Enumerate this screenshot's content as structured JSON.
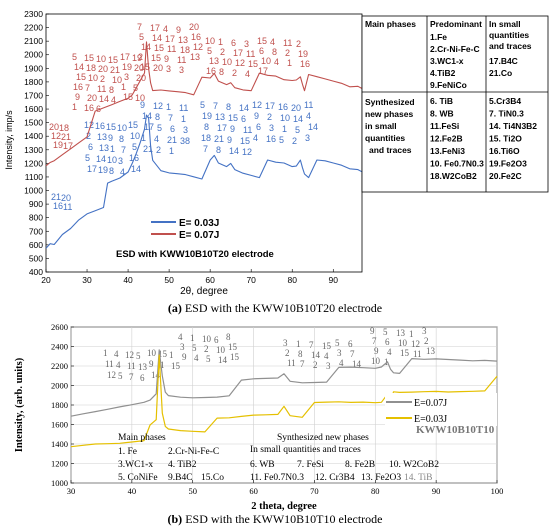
{
  "captions": {
    "a_letter": "(a)",
    "a_text": "ESD with the KWW10B10T20 electrode",
    "b_letter": "(b)",
    "b_text": "ESD with the KWW10B10T10 electrode"
  },
  "chart_data": [
    {
      "type": "line",
      "title": "",
      "xlabel": "2θ, degree",
      "ylabel": "Intensity, imp/s",
      "xlim": [
        20,
        97
      ],
      "ylim": [
        400,
        2300
      ],
      "xticks": [
        20,
        30,
        40,
        50,
        60,
        70,
        80,
        90
      ],
      "yticks": [
        400,
        500,
        600,
        700,
        800,
        900,
        1000,
        1100,
        1200,
        1300,
        1400,
        1500,
        1600,
        1700,
        1800,
        1900,
        2000,
        2100,
        2200,
        2300
      ],
      "grid": false,
      "legend_position": "bottom-center",
      "inset_label": "ESD with KWW10B10T20 electrode",
      "series": [
        {
          "name": "E= 0.03J",
          "color": "#4472c4",
          "x": [
            20,
            21,
            22,
            24,
            26,
            28,
            30,
            32,
            34,
            35,
            36,
            38,
            40,
            41,
            42,
            43,
            44,
            44.5,
            45,
            45.5,
            46,
            48,
            50,
            52,
            54,
            56,
            58,
            60,
            61,
            62,
            64,
            65,
            66,
            68,
            70,
            72,
            74,
            76,
            78,
            80,
            81,
            82,
            82.5,
            83,
            84,
            86,
            88,
            90,
            92,
            94,
            96,
            97
          ],
          "y": [
            510,
            560,
            570,
            660,
            720,
            800,
            860,
            900,
            940,
            990,
            1020,
            1060,
            1120,
            1200,
            1290,
            1390,
            1500,
            1620,
            1470,
            1280,
            1190,
            1130,
            1130,
            1140,
            1150,
            1150,
            1150,
            1160,
            1210,
            1170,
            1160,
            1200,
            1170,
            1160,
            1160,
            1160,
            1160,
            1160,
            1170,
            1160,
            1180,
            1240,
            1200,
            1170,
            1160,
            1160,
            1170,
            1170,
            1170,
            1160,
            1170,
            1170
          ]
        },
        {
          "name": "E= 0.07J",
          "color": "#c0504d",
          "x": [
            20,
            21,
            22,
            24,
            26,
            28,
            30,
            32,
            34,
            36,
            38,
            40,
            41,
            42,
            43,
            44,
            44.5,
            45,
            45.5,
            46,
            48,
            50,
            52,
            54,
            56,
            58,
            60,
            61,
            62,
            64,
            65,
            66,
            68,
            70,
            72,
            74,
            76,
            78,
            80,
            81,
            82,
            82.5,
            83,
            84,
            86,
            88,
            90,
            92,
            94,
            96,
            97
          ],
          "y": [
            1150,
            1190,
            1220,
            1280,
            1340,
            1400,
            1460,
            1520,
            1560,
            1600,
            1640,
            1680,
            1720,
            1790,
            1860,
            1930,
            2030,
            1850,
            1760,
            1720,
            1740,
            1750,
            1760,
            1770,
            1770,
            1770,
            1780,
            1830,
            1790,
            1780,
            1810,
            1790,
            1790,
            1800,
            1800,
            1800,
            1810,
            1800,
            1810,
            1830,
            1870,
            1830,
            1800,
            1790,
            1790,
            1790,
            1790,
            1790,
            1780,
            1800,
            1800
          ]
        }
      ],
      "annotations": {
        "red": [
          "20",
          "18",
          "12",
          "21",
          "19",
          "17",
          "5",
          "15",
          "10",
          "15",
          "17",
          "19",
          "14",
          "18",
          "20",
          "21",
          "19",
          "20",
          "15",
          "10",
          "2",
          "10",
          "3",
          "20",
          "16",
          "7",
          "11",
          "8",
          "1",
          "5",
          "9",
          "20",
          "14",
          "4",
          "15",
          "10",
          "1",
          "16",
          "6",
          "7",
          "17",
          "4",
          "9",
          "20",
          "5",
          "14",
          "17",
          "13",
          "16",
          "14",
          "15",
          "11",
          "18",
          "12",
          "2",
          "15",
          "9",
          "11",
          "13",
          "15",
          "20",
          "3",
          "3",
          "10",
          "1",
          "6",
          "3",
          "15",
          "4",
          "11",
          "2",
          "5",
          "2",
          "17",
          "11",
          "6",
          "8",
          "2",
          "19",
          "13",
          "10",
          "12",
          "15",
          "10",
          "4",
          "1",
          "16",
          "16",
          "8",
          "2",
          "4",
          "17"
        ],
        "blue": [
          "21",
          "20",
          "16",
          "11",
          "12",
          "16",
          "15",
          "10",
          "15",
          "2",
          "13",
          "9",
          "8",
          "10",
          "6",
          "13",
          "1",
          "7",
          "5",
          "5",
          "14",
          "10",
          "3",
          "16",
          "17",
          "19",
          "8",
          "4",
          "14",
          "9",
          "12",
          "1",
          "11",
          "14",
          "8",
          "7",
          "1",
          "17",
          "5",
          "6",
          "3",
          "1",
          "4",
          "21",
          "38",
          "21",
          "2",
          "1",
          "5",
          "7",
          "8",
          "14",
          "12",
          "17",
          "16",
          "20",
          "11",
          "19",
          "13",
          "15",
          "6",
          "9",
          "2",
          "10",
          "14",
          "4",
          "8",
          "17",
          "9",
          "11",
          "6",
          "3",
          "1",
          "5",
          "14",
          "18",
          "21",
          "9",
          "15",
          "4",
          "16",
          "5",
          "2",
          "3",
          "7",
          "8",
          "14",
          "12"
        ]
      },
      "phase_table": {
        "headers": [
          "Main phases",
          "Predominant",
          "In small quantities and traces"
        ],
        "main_predominant": [
          "1.Fe",
          "2.Cr-Ni-Fe-C",
          "3.WC1-x",
          "4.TiB2",
          "9.FeNiCo"
        ],
        "main_small": [
          "17.B4C",
          "21.Co"
        ],
        "synth_label": "Synthesized new phases in small quantities and traces",
        "synth_col1": [
          "6. TiB",
          "8. WB",
          "11.FeSi",
          "12.Fe2B",
          "13.FeNi3",
          "10. Fe0.7N0.3",
          "18.W2CoB2"
        ],
        "synth_col2": [
          "5.Cr3B4",
          "7. TiN0.3",
          "14. Ti4N3B2",
          "15. Ti2O",
          "16.Ti6O",
          "19.Fe2O3",
          "20.Fe2C"
        ]
      }
    },
    {
      "type": "line",
      "title": "",
      "xlabel": "2 theta, degree",
      "ylabel": "Intensity, (arb. units)",
      "xlim": [
        30,
        100
      ],
      "ylim": [
        1000,
        2600
      ],
      "xticks": [
        30,
        40,
        50,
        60,
        70,
        80,
        90,
        100
      ],
      "yticks": [
        1000,
        1200,
        1400,
        1600,
        1800,
        2000,
        2200,
        2400,
        2600
      ],
      "grid": true,
      "legend_position": "right",
      "inset_label": "KWW10B10T10",
      "series": [
        {
          "name": "E=0.07J",
          "color": "#909090",
          "x": [
            30,
            32,
            34,
            36,
            38,
            40,
            42,
            43,
            44,
            44.5,
            45,
            45.5,
            46,
            48,
            50,
            52,
            54,
            56,
            58,
            60,
            62,
            64,
            65,
            66,
            68,
            70,
            72,
            74,
            76,
            78,
            80,
            81,
            82,
            82.5,
            83,
            84,
            86,
            88,
            90,
            92,
            94,
            96,
            98,
            100
          ],
          "y": [
            1620,
            1660,
            1700,
            1740,
            1780,
            1820,
            1860,
            1900,
            1980,
            2300,
            2050,
            1900,
            1880,
            1880,
            1890,
            1910,
            1930,
            1960,
            1990,
            2020,
            2040,
            2060,
            2120,
            2060,
            2060,
            2080,
            2100,
            2120,
            2140,
            2150,
            2160,
            2190,
            2260,
            2200,
            2180,
            2190,
            2210,
            2220,
            2240,
            2250,
            2260,
            2270,
            2290,
            2300
          ]
        },
        {
          "name": "E=0.03J",
          "color": "#e5c000",
          "x": [
            30,
            32,
            34,
            36,
            38,
            40,
            42,
            43,
            44,
            44.5,
            45,
            45.5,
            46,
            48,
            50,
            52,
            54,
            56,
            58,
            60,
            62,
            64,
            65,
            66,
            68,
            70,
            72,
            74,
            76,
            78,
            80,
            81,
            82,
            82.5,
            83,
            84,
            86,
            88,
            90,
            92,
            94,
            96,
            98,
            100
          ],
          "y": [
            1340,
            1370,
            1400,
            1420,
            1440,
            1470,
            1500,
            1530,
            1600,
            2280,
            1700,
            1580,
            1570,
            1570,
            1580,
            1590,
            1600,
            1620,
            1650,
            1680,
            1700,
            1720,
            1820,
            1740,
            1740,
            1760,
            1780,
            1800,
            1810,
            1830,
            1840,
            1860,
            1960,
            1890,
            1870,
            1880,
            1900,
            1920,
            1940,
            1950,
            1970,
            1990,
            2010,
            2030
          ]
        }
      ],
      "annotations": [
        "1",
        "4",
        "12",
        "5",
        "10",
        "15",
        "1",
        "11",
        "4",
        "11",
        "13",
        "9",
        "1",
        "15",
        "12",
        "5",
        "7",
        "6",
        "14",
        "4",
        "1",
        "10",
        "6",
        "8",
        "3",
        "5",
        "2",
        "10",
        "15",
        "9",
        "4",
        "5",
        "14",
        "15",
        "3",
        "1",
        "7",
        "15",
        "5",
        "6",
        "2",
        "8",
        "14",
        "4",
        "3",
        "7",
        "11",
        "7",
        "2",
        "3",
        "4",
        "14",
        "9",
        "5",
        "13",
        "1",
        "3",
        "7",
        "6",
        "10",
        "12",
        "2",
        "9",
        "4",
        "15",
        "11",
        "13",
        "10",
        "1"
      ],
      "phase_text": {
        "main_label": "Main phases",
        "main": [
          "1. Fe",
          "2.Cr-Ni-Fe-C",
          "3.WC1-x",
          "4. TiB2",
          "5. CoNiFe",
          "9.B4C",
          "15.Co"
        ],
        "synth_label": "Synthesized new phases",
        "synth_sub": "In small quantities and traces",
        "synth": [
          "6. WB",
          "7. FeSi",
          "8. Fe2B",
          "10. W2CoB2",
          "11. Fe0.7N0.3",
          "12. Cr3B4",
          "13. Fe2O3",
          "14. TiB"
        ]
      }
    }
  ]
}
